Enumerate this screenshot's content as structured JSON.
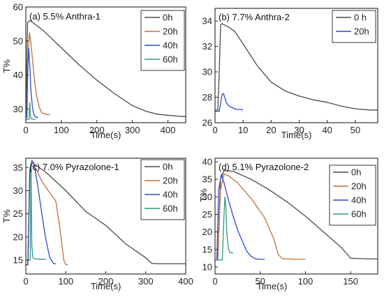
{
  "chart_data": [
    {
      "type": "line",
      "title": "(a) 5.5% Anthra-1",
      "xlabel": "Time(s)",
      "ylabel": "T%",
      "xlim": [
        0,
        450
      ],
      "ylim": [
        26,
        60
      ],
      "xticks": [
        0,
        100,
        200,
        300,
        400
      ],
      "yticks": [
        30,
        40,
        50,
        60
      ],
      "legend_position": "top-right",
      "series": [
        {
          "name": "0h",
          "color": "#4a4a4a",
          "x": [
            0,
            5,
            12,
            25,
            50,
            100,
            150,
            200,
            250,
            300,
            340,
            370,
            400,
            430,
            450
          ],
          "y": [
            28,
            55.5,
            56,
            55,
            53,
            48,
            43,
            38.5,
            34.5,
            31,
            29.3,
            28.5,
            28.2,
            27.9,
            27.8
          ]
        },
        {
          "name": "20h",
          "color": "#c06f3c",
          "x": [
            0,
            3,
            6,
            10,
            15,
            20,
            25,
            30,
            38,
            45,
            52,
            60,
            68
          ],
          "y": [
            28,
            28,
            44,
            52.5,
            49,
            43,
            38,
            34,
            30.5,
            29,
            28.6,
            28.4,
            28.4
          ]
        },
        {
          "name": "40h",
          "color": "#2f49c7",
          "x": [
            0,
            3,
            5,
            8,
            11,
            14,
            18,
            22,
            28,
            35
          ],
          "y": [
            27.5,
            27.5,
            40,
            48,
            43,
            36,
            31,
            28.5,
            27.6,
            27.5
          ]
        },
        {
          "name": "60h",
          "color": "#2e9b78",
          "x": [
            0,
            5,
            9,
            11,
            13,
            15,
            18,
            22,
            28
          ],
          "y": [
            27,
            27,
            27,
            32,
            28,
            27.3,
            27.1,
            27,
            27
          ]
        }
      ]
    },
    {
      "type": "line",
      "title": "(b) 7.7% Anthra-2",
      "xlabel": "Time(s)",
      "ylabel": "",
      "xlim": [
        0,
        58
      ],
      "ylim": [
        26,
        35
      ],
      "xticks": [
        0,
        10,
        20,
        30,
        40,
        50
      ],
      "yticks": [
        26,
        28,
        30,
        32,
        34
      ],
      "legend_position": "top-right",
      "series": [
        {
          "name": "0 h",
          "color": "#4a4a4a",
          "x": [
            0,
            1,
            1.5,
            2,
            2.5,
            5,
            7,
            10,
            15,
            20,
            25,
            30,
            35,
            40,
            45,
            50,
            55,
            58
          ],
          "y": [
            27,
            27,
            30,
            33.7,
            33.8,
            33.5,
            33.2,
            32.2,
            30.5,
            29.2,
            28.5,
            28.1,
            27.8,
            27.6,
            27.3,
            27.1,
            27,
            27
          ]
        },
        {
          "name": "20h",
          "color": "#2f49c7",
          "x": [
            0,
            1,
            1.5,
            2,
            2.5,
            3,
            4,
            5,
            6,
            7,
            8,
            9,
            10
          ],
          "y": [
            26.9,
            26.9,
            26.9,
            27.5,
            28.2,
            28.3,
            27.6,
            27.3,
            27.2,
            27.1,
            27.05,
            27.05,
            27
          ]
        }
      ]
    },
    {
      "type": "line",
      "title": "(c) 7.0% Pyrazolone-1",
      "xlabel": "Time(s)",
      "ylabel": "T%",
      "xlim": [
        0,
        400
      ],
      "ylim": [
        12,
        37
      ],
      "xticks": [
        0,
        100,
        200,
        300,
        400
      ],
      "yticks": [
        15,
        20,
        25,
        30,
        35
      ],
      "legend_position": "top-right",
      "series": [
        {
          "name": "0h",
          "color": "#4a4a4a",
          "x": [
            0,
            5,
            10,
            15,
            25,
            50,
            100,
            150,
            200,
            250,
            300,
            315,
            330,
            360,
            400
          ],
          "y": [
            14,
            14,
            34.5,
            36,
            35.5,
            34,
            30,
            25.5,
            22.5,
            18.5,
            15.5,
            14.3,
            14.2,
            14.2,
            14.2
          ]
        },
        {
          "name": "20h",
          "color": "#c06f3c",
          "x": [
            0,
            5,
            10,
            15,
            25,
            40,
            60,
            75,
            85,
            95,
            100,
            105
          ],
          "y": [
            14,
            14,
            34,
            35.5,
            34.8,
            32,
            29.5,
            27.8,
            22,
            15,
            14,
            14
          ]
        },
        {
          "name": "40h",
          "color": "#2f49c7",
          "x": [
            0,
            5,
            10,
            15,
            20,
            30,
            40,
            50,
            60,
            70,
            75
          ],
          "y": [
            14,
            14,
            34,
            36.5,
            36,
            31,
            25,
            19.5,
            15.5,
            14.2,
            14.2
          ]
        },
        {
          "name": "60h",
          "color": "#2e9b78",
          "x": [
            0,
            5,
            8,
            11,
            13,
            15,
            18,
            22,
            30,
            50
          ],
          "y": [
            15,
            15,
            15,
            15,
            36,
            18,
            15.5,
            15.3,
            15.2,
            15.2
          ]
        }
      ]
    },
    {
      "type": "line",
      "title": "(d) 5.1% Pyrazolone-2",
      "xlabel": "Time(s)",
      "ylabel": "T%",
      "xlim": [
        0,
        180
      ],
      "ylim": [
        8,
        41
      ],
      "xticks": [
        0,
        50,
        100,
        150
      ],
      "yticks": [
        10,
        15,
        20,
        25,
        30,
        35,
        40
      ],
      "legend_position": "top-right",
      "series": [
        {
          "name": "0h",
          "color": "#4a4a4a",
          "x": [
            0,
            3,
            6,
            10,
            20,
            40,
            60,
            80,
            100,
            120,
            140,
            150,
            160,
            170,
            180
          ],
          "y": [
            12,
            12,
            35,
            37.5,
            37.3,
            35,
            32,
            28.5,
            24.5,
            20,
            15.5,
            12.5,
            12.4,
            12.3,
            12.3
          ]
        },
        {
          "name": "20h",
          "color": "#c06f3c",
          "x": [
            0,
            3,
            6,
            10,
            15,
            25,
            40,
            55,
            65,
            70,
            75,
            80,
            90,
            100
          ],
          "y": [
            12,
            12,
            32,
            36.5,
            36,
            34,
            29.5,
            24,
            18,
            13.5,
            12.3,
            12.3,
            12.2,
            12.2
          ]
        },
        {
          "name": "40h",
          "color": "#2f49c7",
          "x": [
            0,
            2,
            4,
            7,
            10,
            15,
            20,
            25,
            30,
            35,
            40,
            45,
            50,
            55
          ],
          "y": [
            12,
            12,
            32,
            36.5,
            34,
            29,
            24.5,
            20.5,
            17.5,
            14.5,
            13,
            12.3,
            12.2,
            12.2
          ]
        },
        {
          "name": "60h",
          "color": "#2e9b78",
          "x": [
            0,
            5,
            8,
            10,
            11,
            12,
            13,
            14,
            15,
            17,
            20
          ],
          "y": [
            12,
            12,
            12,
            25,
            30,
            27,
            20,
            17,
            15,
            14,
            14
          ]
        }
      ]
    }
  ]
}
